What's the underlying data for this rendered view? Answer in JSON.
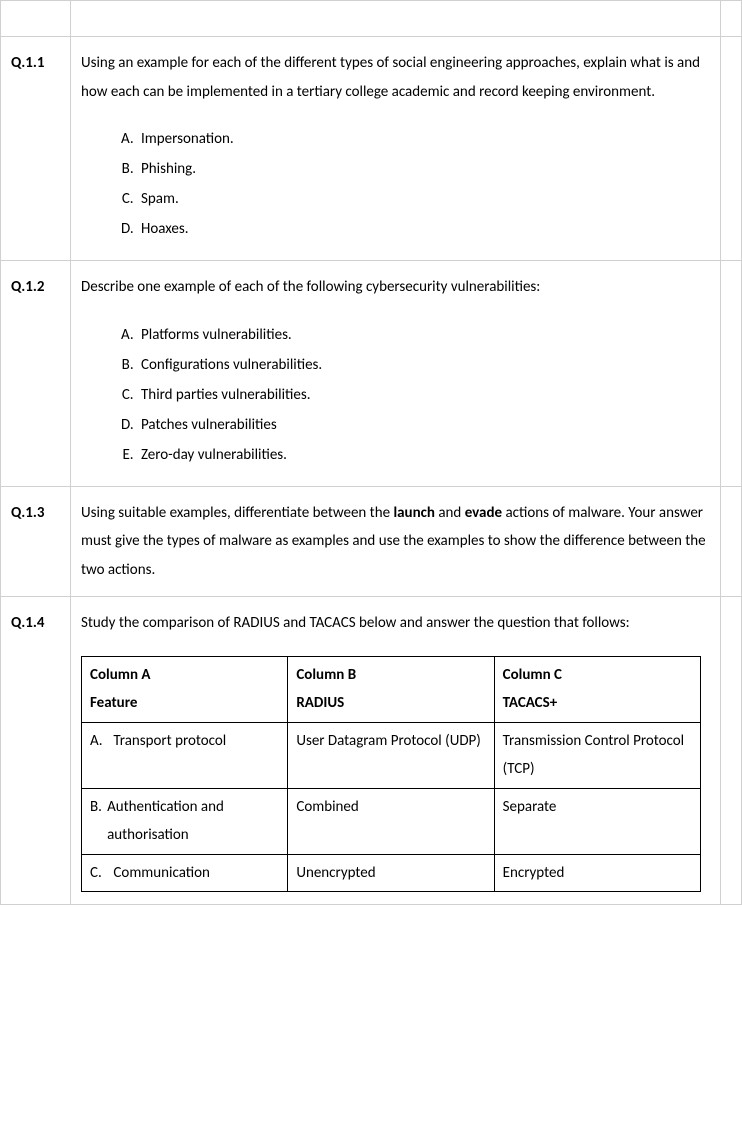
{
  "questions": [
    {
      "number": "Q.1.1",
      "text_parts": [
        "Using an example for each of the different types of social engineering approaches, explain what is and how each can be implemented in a tertiary college academic and record keeping environment."
      ],
      "list": [
        "Impersonation.",
        "Phishing.",
        "Spam.",
        "Hoaxes."
      ]
    },
    {
      "number": "Q.1.2",
      "text_parts": [
        "Describe one example of each of the following cybersecurity vulnerabilities:"
      ],
      "list": [
        "Platforms vulnerabilities.",
        "Configurations vulnerabilities.",
        "Third parties vulnerabilities.",
        "Patches vulnerabilities",
        "Zero-day vulnerabilities."
      ]
    },
    {
      "number": "Q.1.3",
      "text_pre": "Using suitable examples, differentiate between the ",
      "bold1": "launch",
      "mid": " and ",
      "bold2": "evade",
      "text_post": " actions of malware. Your answer must give the types of malware as examples and use the examples to show the difference between the two actions."
    },
    {
      "number": "Q.1.4",
      "text_parts": [
        "Study the comparison of RADIUS and TACACS below and answer the question that follows:"
      ],
      "table": {
        "header_row1": [
          "Column A",
          "Column B",
          "Column C"
        ],
        "header_row2": [
          "Feature",
          "RADIUS",
          "TACACS+"
        ],
        "rows": [
          {
            "letter": "A.",
            "feature": "Transport protocol",
            "radius": "User Datagram Protocol (UDP)",
            "tacacs": "Transmission Control Protocol (TCP)"
          },
          {
            "letter": "B.",
            "feature": "Authentication and authorisation",
            "radius": "Combined",
            "tacacs": "Separate"
          },
          {
            "letter": "C.",
            "feature": "Communication",
            "radius": "Unencrypted",
            "tacacs": "Encrypted"
          }
        ]
      }
    }
  ]
}
